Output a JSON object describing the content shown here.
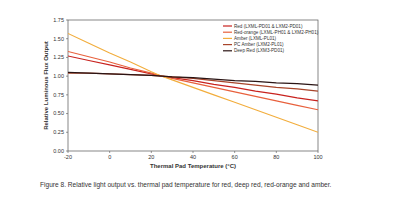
{
  "chart_data": {
    "type": "line",
    "caption": "Figure 8.  Relative light output vs. thermal pad temperature for red, deep red, red-orange and amber.",
    "x_label": "Thermal Pad Temperature (°C)",
    "y_label": "Relative Luminous Flux Output",
    "x": [
      -20,
      -10,
      0,
      10,
      20,
      25,
      30,
      40,
      50,
      60,
      70,
      80,
      90,
      100
    ],
    "series": [
      {
        "name": "Red (LXML-PD01 & LXM2-PD01)",
        "color": "#c8221e",
        "values": [
          1.27,
          1.21,
          1.15,
          1.09,
          1.03,
          1.0,
          0.98,
          0.94,
          0.89,
          0.85,
          0.8,
          0.76,
          0.71,
          0.67
        ]
      },
      {
        "name": "Red-orange (LXML-PH01 & LXM2-PH01)",
        "color": "#e8603c",
        "values": [
          1.33,
          1.26,
          1.19,
          1.11,
          1.04,
          1.0,
          0.97,
          0.91,
          0.85,
          0.79,
          0.73,
          0.67,
          0.61,
          0.55
        ]
      },
      {
        "name": "Amber (LXML-PL01)",
        "color": "#f2ad3c",
        "values": [
          1.57,
          1.44,
          1.31,
          1.19,
          1.06,
          1.0,
          0.95,
          0.85,
          0.75,
          0.65,
          0.55,
          0.45,
          0.35,
          0.25
        ]
      },
      {
        "name": "PC Amber (LXM2-PL01)",
        "color": "#a8452a",
        "values": [
          1.04,
          1.04,
          1.03,
          1.02,
          1.01,
          1.0,
          0.99,
          0.97,
          0.94,
          0.91,
          0.88,
          0.85,
          0.83,
          0.8
        ]
      },
      {
        "name": "Deep Red (LXM3-PD01)",
        "color": "#2a1414",
        "values": [
          1.05,
          1.04,
          1.03,
          1.02,
          1.01,
          1.0,
          0.99,
          0.98,
          0.96,
          0.94,
          0.93,
          0.91,
          0.9,
          0.88
        ]
      }
    ],
    "xlim": [
      -20,
      100
    ],
    "xticks": [
      -20,
      0,
      20,
      40,
      60,
      80,
      100
    ],
    "ylim": [
      0,
      1.75
    ],
    "yticks": [
      {
        "value": 0,
        "label": "0.00"
      },
      {
        "value": 0.25,
        "label": "0.25"
      },
      {
        "value": 0.5,
        "label": "0.50"
      },
      {
        "value": 0.75,
        "label": "0.75"
      },
      {
        "value": 1,
        "label": "1.00"
      },
      {
        "value": 1.25,
        "label": "1.25"
      },
      {
        "value": 1.5,
        "label": "1.50"
      },
      {
        "value": 1.75,
        "label": "1.75"
      }
    ],
    "grid": false,
    "legend": "top-right"
  }
}
